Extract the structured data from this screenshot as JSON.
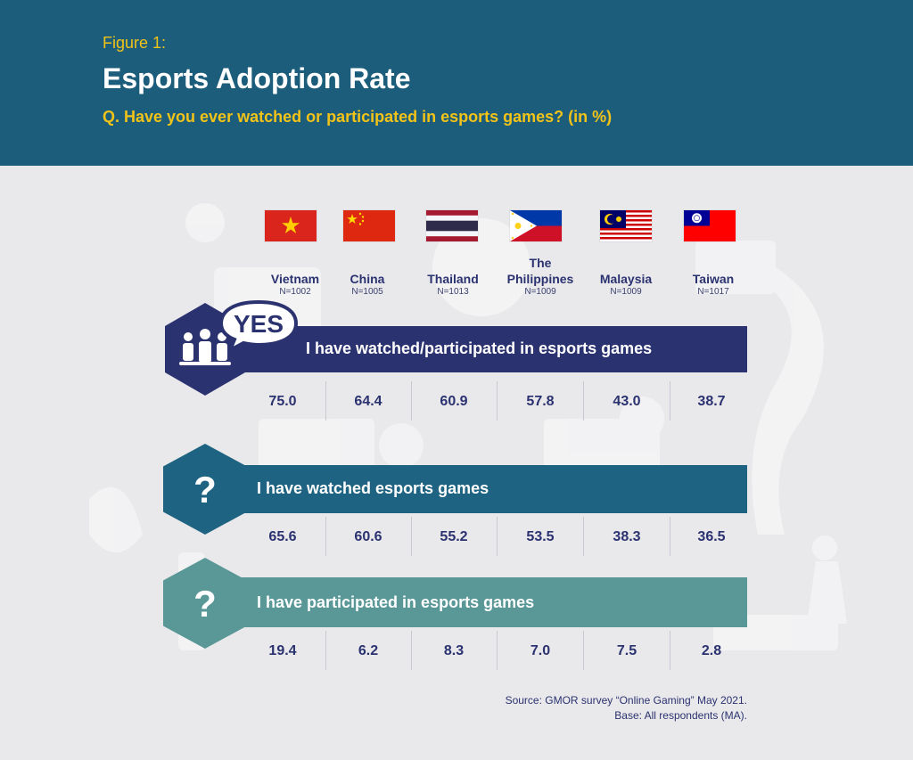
{
  "header": {
    "figure_label": "Figure 1:",
    "title": "Esports Adoption Rate",
    "question": "Q. Have you ever watched or participated in esports games?  (in %)"
  },
  "colors": {
    "header_bg": "#1b5d7b",
    "accent_yellow": "#f2c318",
    "yes_band": "#2b3270",
    "watched_band": "#1e6381",
    "participated_band": "#5a9797",
    "text_navy": "#2b3270"
  },
  "countries": [
    {
      "name": "Vietnam",
      "n": "N=1002",
      "flag": "vietnam-flag-icon"
    },
    {
      "name": "China",
      "n": "N=1005",
      "flag": "china-flag-icon"
    },
    {
      "name": "Thailand",
      "n": "N=1013",
      "flag": "thailand-flag-icon"
    },
    {
      "name": "The Philippines",
      "n": "N=1009",
      "flag": "philippines-flag-icon"
    },
    {
      "name": "Malaysia",
      "n": "N=1009",
      "flag": "malaysia-flag-icon"
    },
    {
      "name": "Taiwan",
      "n": "N=1017",
      "flag": "taiwan-flag-icon"
    }
  ],
  "yes_badge": "YES",
  "question_mark": "?",
  "chart_data": {
    "type": "table",
    "columns": [
      "Vietnam",
      "China",
      "Thailand",
      "The Philippines",
      "Malaysia",
      "Taiwan"
    ],
    "sample_sizes": [
      "N=1002",
      "N=1005",
      "N=1013",
      "N=1009",
      "N=1009",
      "N=1017"
    ],
    "rows": [
      {
        "label": "I have watched/participated in esports games",
        "values": [
          "75.0",
          "64.4",
          "60.9",
          "57.8",
          "43.0",
          "38.7"
        ]
      },
      {
        "label": "I have watched esports games",
        "values": [
          "65.6",
          "60.6",
          "55.2",
          "53.5",
          "38.3",
          "36.5"
        ]
      },
      {
        "label": "I have participated in esports games",
        "values": [
          "19.4",
          "6.2",
          "8.3",
          "7.0",
          "7.5",
          "2.8"
        ]
      }
    ]
  },
  "source": {
    "line1": "Source: GMOR survey “Online Gaming” May 2021.",
    "line2": "Base: All respondents (MA)."
  }
}
